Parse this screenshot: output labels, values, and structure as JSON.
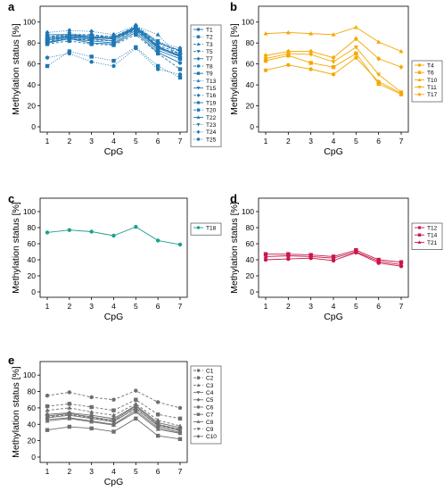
{
  "chart_data": [
    {
      "panel": "a",
      "type": "line",
      "xlabel": "CpG",
      "ylabel": "Methylation status [%]",
      "x": [
        1,
        2,
        3,
        4,
        5,
        6,
        7
      ],
      "ylim": [
        0,
        100
      ],
      "yticks": [
        0,
        20,
        40,
        60,
        80,
        100
      ],
      "color": "#1f77b4",
      "legend_placement": "right",
      "series": [
        {
          "name": "T1",
          "values": [
            88,
            88,
            86,
            85,
            95,
            80,
            73
          ],
          "marker": "circle",
          "dash": "solid"
        },
        {
          "name": "T2",
          "values": [
            58,
            72,
            67,
            63,
            76,
            58,
            47
          ],
          "marker": "square",
          "dash": "dot"
        },
        {
          "name": "T3",
          "values": [
            85,
            87,
            88,
            84,
            95,
            78,
            70
          ],
          "marker": "triangle-up",
          "dash": "dash"
        },
        {
          "name": "T5",
          "values": [
            84,
            86,
            85,
            84,
            93,
            76,
            68
          ],
          "marker": "triangle-down",
          "dash": "dash"
        },
        {
          "name": "T7",
          "values": [
            83,
            85,
            84,
            82,
            94,
            75,
            67
          ],
          "marker": "diamond",
          "dash": "solid"
        },
        {
          "name": "T8",
          "values": [
            86,
            88,
            88,
            86,
            96,
            80,
            72
          ],
          "marker": "circle",
          "dash": "dash"
        },
        {
          "name": "T9",
          "values": [
            81,
            84,
            82,
            80,
            92,
            73,
            65
          ],
          "marker": "square",
          "dash": "solid"
        },
        {
          "name": "T13",
          "values": [
            84,
            87,
            86,
            85,
            96,
            88,
            66
          ],
          "marker": "triangle-up",
          "dash": "dot"
        },
        {
          "name": "T15",
          "values": [
            83,
            86,
            85,
            84,
            94,
            76,
            68
          ],
          "marker": "triangle-down",
          "dash": "solid"
        },
        {
          "name": "T16",
          "values": [
            82,
            84,
            83,
            82,
            93,
            75,
            70
          ],
          "marker": "diamond",
          "dash": "dash"
        },
        {
          "name": "T19",
          "values": [
            80,
            84,
            80,
            79,
            90,
            71,
            61
          ],
          "marker": "circle",
          "dash": "solid"
        },
        {
          "name": "T20",
          "values": [
            79,
            82,
            79,
            78,
            88,
            70,
            55
          ],
          "marker": "square",
          "dash": "dash"
        },
        {
          "name": "T22",
          "values": [
            85,
            87,
            86,
            85,
            95,
            77,
            67
          ],
          "marker": "triangle-up",
          "dash": "solid"
        },
        {
          "name": "T23",
          "values": [
            86,
            89,
            87,
            86,
            95,
            82,
            69
          ],
          "marker": "triangle-down",
          "dash": "dot"
        },
        {
          "name": "T24",
          "values": [
            90,
            92,
            91,
            88,
            97,
            81,
            75
          ],
          "marker": "diamond",
          "dash": "dot"
        },
        {
          "name": "T25",
          "values": [
            66,
            70,
            62,
            58,
            75,
            55,
            50
          ],
          "marker": "circle",
          "dash": "dot"
        }
      ]
    },
    {
      "panel": "b",
      "type": "line",
      "xlabel": "CpG",
      "ylabel": "Methylation status [%]",
      "x": [
        1,
        2,
        3,
        4,
        5,
        6,
        7
      ],
      "ylim": [
        0,
        100
      ],
      "yticks": [
        0,
        20,
        40,
        60,
        80,
        100
      ],
      "color": "#f5a800",
      "legend_placement": "right",
      "series": [
        {
          "name": "T4",
          "values": [
            54,
            59,
            55,
            50,
            66,
            43,
            32
          ],
          "marker": "circle",
          "dash": "solid"
        },
        {
          "name": "T6",
          "values": [
            63,
            68,
            61,
            57,
            70,
            41,
            31
          ],
          "marker": "square",
          "dash": "solid"
        },
        {
          "name": "T10",
          "values": [
            89,
            90,
            89,
            88,
            95,
            81,
            72
          ],
          "marker": "triangle-up",
          "dash": "solid"
        },
        {
          "name": "T11",
          "values": [
            65,
            70,
            69,
            62,
            76,
            50,
            33
          ],
          "marker": "triangle-down",
          "dash": "solid"
        },
        {
          "name": "T17",
          "values": [
            68,
            72,
            72,
            66,
            84,
            65,
            57
          ],
          "marker": "diamond",
          "dash": "solid"
        }
      ]
    },
    {
      "panel": "c",
      "type": "line",
      "xlabel": "CpG",
      "ylabel": "Methylation status [%]",
      "x": [
        1,
        2,
        3,
        4,
        5,
        6,
        7
      ],
      "ylim": [
        0,
        100
      ],
      "yticks": [
        0,
        20,
        40,
        60,
        80,
        100
      ],
      "color": "#1aa08c",
      "legend_placement": "right",
      "series": [
        {
          "name": "T18",
          "values": [
            74,
            77,
            75,
            70,
            81,
            64,
            59
          ],
          "marker": "circle",
          "dash": "solid"
        }
      ]
    },
    {
      "panel": "d",
      "type": "line",
      "xlabel": "CpG",
      "ylabel": "Methylation status [%]",
      "x": [
        1,
        2,
        3,
        4,
        5,
        6,
        7
      ],
      "ylim": [
        0,
        100
      ],
      "yticks": [
        0,
        20,
        40,
        60,
        80,
        100
      ],
      "color": "#c8174a",
      "legend_placement": "right",
      "series": [
        {
          "name": "T12",
          "values": [
            40,
            41,
            42,
            39,
            49,
            36,
            32
          ],
          "marker": "circle",
          "dash": "solid"
        },
        {
          "name": "T14",
          "values": [
            47,
            47,
            46,
            44,
            52,
            40,
            37
          ],
          "marker": "square",
          "dash": "solid"
        },
        {
          "name": "T21",
          "values": [
            44,
            45,
            44,
            42,
            50,
            38,
            34
          ],
          "marker": "triangle-up",
          "dash": "solid"
        }
      ]
    },
    {
      "panel": "e",
      "type": "line",
      "xlabel": "CpG",
      "ylabel": "Methylation status [%]",
      "x": [
        1,
        2,
        3,
        4,
        5,
        6,
        7
      ],
      "ylim": [
        0,
        100
      ],
      "yticks": [
        0,
        20,
        40,
        60,
        80,
        100
      ],
      "color": "#6e6e6e",
      "legend_placement": "right",
      "series": [
        {
          "name": "C1",
          "values": [
            75,
            79,
            73,
            70,
            81,
            67,
            60
          ],
          "marker": "circle",
          "dash": "dash"
        },
        {
          "name": "C2",
          "values": [
            62,
            65,
            61,
            57,
            70,
            52,
            47
          ],
          "marker": "square",
          "dash": "dash"
        },
        {
          "name": "C3",
          "values": [
            57,
            60,
            55,
            51,
            65,
            45,
            38
          ],
          "marker": "triangle-up",
          "dash": "dash"
        },
        {
          "name": "C4",
          "values": [
            50,
            53,
            49,
            45,
            62,
            40,
            34
          ],
          "marker": "triangle-down",
          "dash": "solid"
        },
        {
          "name": "C5",
          "values": [
            48,
            51,
            47,
            43,
            60,
            38,
            32
          ],
          "marker": "diamond",
          "dash": "solid"
        },
        {
          "name": "C6",
          "values": [
            46,
            48,
            44,
            40,
            57,
            36,
            30
          ],
          "marker": "circle",
          "dash": "solid"
        },
        {
          "name": "C7",
          "values": [
            33,
            37,
            35,
            31,
            47,
            26,
            22
          ],
          "marker": "square",
          "dash": "solid"
        },
        {
          "name": "C8",
          "values": [
            44,
            47,
            43,
            39,
            55,
            34,
            29
          ],
          "marker": "triangle-up",
          "dash": "solid"
        },
        {
          "name": "C9",
          "values": [
            49,
            52,
            48,
            44,
            59,
            39,
            33
          ],
          "marker": "triangle-down",
          "dash": "dash"
        },
        {
          "name": "C10",
          "values": [
            52,
            54,
            51,
            47,
            63,
            42,
            36
          ],
          "marker": "diamond",
          "dash": "solid"
        }
      ]
    }
  ]
}
